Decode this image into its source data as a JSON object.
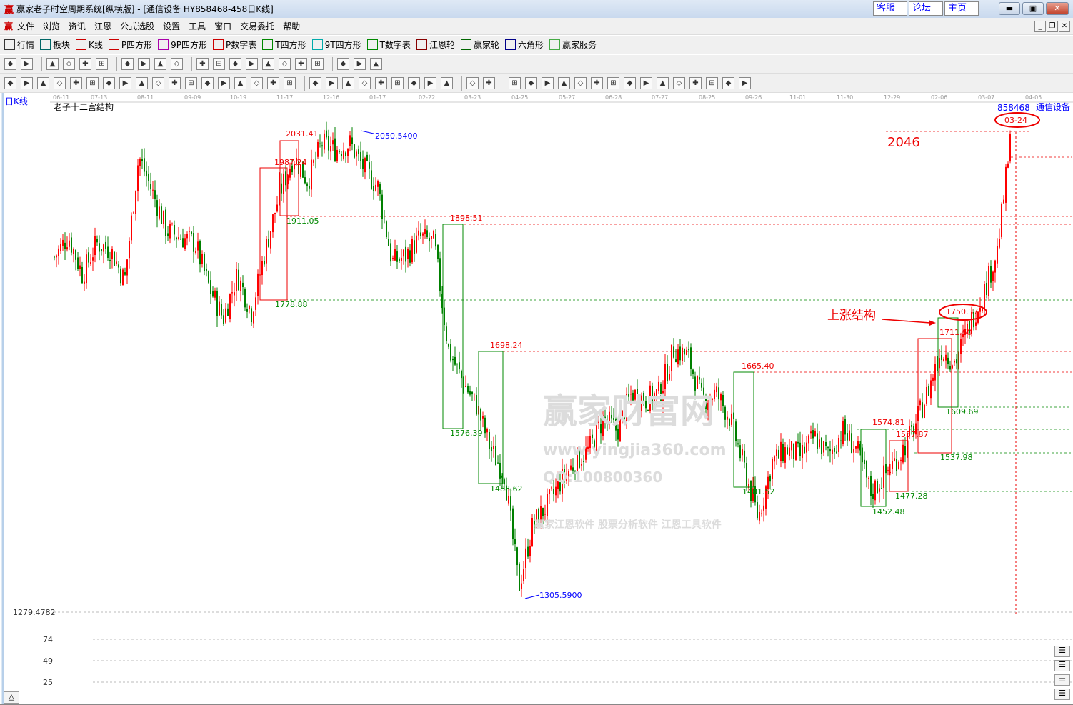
{
  "window": {
    "title": "赢家老子时空周期系统[纵横版] - [通信设备  HY858468-458日K线]",
    "logo": "赢",
    "links": [
      "客服",
      "论坛",
      "主页"
    ]
  },
  "menu": {
    "logo": "赢",
    "items": [
      "文件",
      "浏览",
      "资讯",
      "江恩",
      "公式选股",
      "设置",
      "工具",
      "窗口",
      "交易委托",
      "帮助"
    ]
  },
  "toolbar1": [
    {
      "icon": "grid-icon",
      "label": "行情"
    },
    {
      "icon": "blocks-icon",
      "label": "板块"
    },
    {
      "icon": "candle-icon",
      "label": "K线"
    },
    {
      "icon": "PS",
      "label": "P四方形"
    },
    {
      "icon": "P9",
      "label": "9P四方形"
    },
    {
      "icon": "PN",
      "label": "P数字表"
    },
    {
      "icon": "TS",
      "label": "T四方形"
    },
    {
      "icon": "T9",
      "label": "9T四方形"
    },
    {
      "icon": "TN",
      "label": "T数字表"
    },
    {
      "icon": "wheel-icon",
      "label": "江恩轮"
    },
    {
      "icon": "yingjia-wheel-icon",
      "label": "赢家轮"
    },
    {
      "icon": "hexagon-icon",
      "label": "六角形"
    },
    {
      "icon": "dollar-icon",
      "label": "赢家服务"
    }
  ],
  "chart": {
    "period_label": "日K线",
    "indicator_title": "老子十二宫结构",
    "code": "858468",
    "name": "通信设备",
    "date_ticks": [
      "06-11",
      "07-13",
      "08-11",
      "09-09",
      "10-19",
      "11-17",
      "12-16",
      "01-17",
      "02-22",
      "03-23",
      "04-25",
      "05-27",
      "06-28",
      "07-27",
      "08-25",
      "09-26",
      "11-01",
      "11-30",
      "12-29",
      "02-06",
      "03-07",
      "04-05"
    ],
    "marked_date": "03-24",
    "bottom_price": "1279.4782",
    "sub_ticks": [
      "74",
      "49",
      "25"
    ],
    "high_label": "2050.5400",
    "low_label": "1305.5900",
    "target_label": "2046",
    "annotation": "上涨结构",
    "red_labels": [
      "2031.41",
      "1987.24",
      "1898.51",
      "1698.24",
      "1665.40",
      "1574.81",
      "1557.87",
      "1750.37",
      "1711.60"
    ],
    "green_labels": [
      "1911.05",
      "1778.88",
      "1576.39",
      "1488.62",
      "1481.52",
      "1452.48",
      "1477.28",
      "1609.69",
      "1537.98"
    ],
    "watermark": [
      "赢家财富网",
      "赢家江恩软件 股票分析软件 江恩工具软件",
      "www.yingjia360.com",
      "QQ:100800360"
    ],
    "colors": {
      "up": "#ff0000",
      "down": "#008000",
      "high_low": "#0000ff"
    }
  },
  "chart_data": {
    "type": "candlestick",
    "series": [
      {
        "values": [
          1848,
          1882,
          1820,
          1870,
          1860,
          1810,
          2010,
          1950,
          1890,
          1880,
          1870,
          1800,
          1750,
          1820,
          1760,
          1860,
          1950,
          2010,
          1970,
          2030,
          2020,
          2030,
          1990,
          1960,
          1840,
          1850,
          1880,
          1870,
          1700,
          1650,
          1610,
          1540,
          1500,
          1320,
          1420,
          1450,
          1490,
          1520,
          1540,
          1590,
          1570,
          1630,
          1620,
          1630,
          1700,
          1690,
          1620,
          1630,
          1590,
          1510,
          1430,
          1520,
          1540,
          1530,
          1560,
          1530,
          1570,
          1540,
          1470,
          1500,
          1530,
          1570,
          1630,
          1700,
          1680,
          1740,
          1790,
          1860,
          2050
        ]
      }
    ],
    "ylim": [
      1279.4782,
      2080
    ]
  }
}
